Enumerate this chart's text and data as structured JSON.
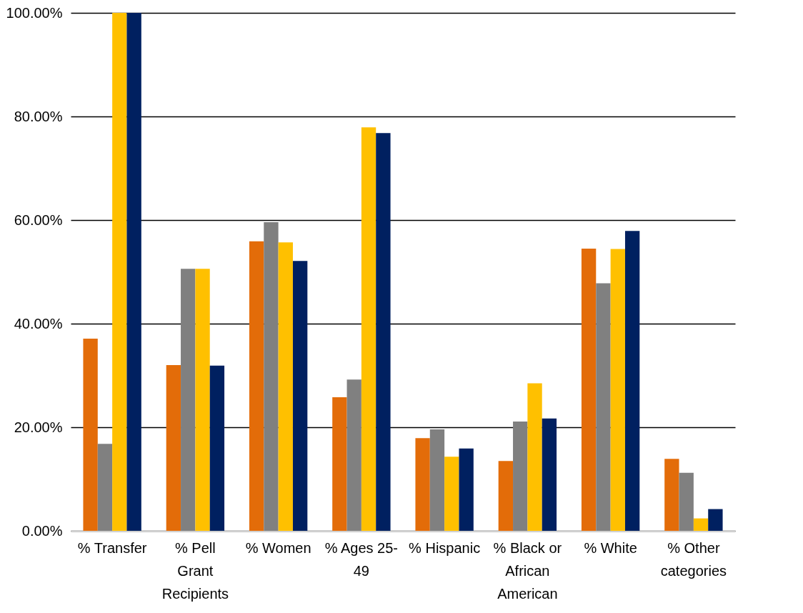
{
  "chart_data": {
    "type": "bar",
    "categories": [
      "% Transfer",
      "% Pell Grant Recipients",
      "% Women",
      "% Ages 25-49",
      "% Hispanic",
      "% Black or African American",
      "% White",
      "% Other categories"
    ],
    "series": [
      {
        "color": "#e36c09",
        "values": [
          37.1,
          32.0,
          55.9,
          25.8,
          17.9,
          13.5,
          54.5,
          13.9
        ]
      },
      {
        "color": "#808080",
        "values": [
          16.8,
          50.6,
          59.6,
          29.2,
          19.6,
          21.1,
          47.8,
          11.2
        ]
      },
      {
        "color": "#ffc000",
        "values": [
          100,
          50.6,
          55.7,
          77.9,
          14.3,
          28.5,
          54.4,
          2.4
        ]
      },
      {
        "color": "#002060",
        "values": [
          100,
          31.9,
          52.1,
          76.8,
          15.9,
          21.7,
          57.9,
          4.2
        ]
      }
    ],
    "ylim": [
      0,
      100
    ],
    "yticks": [
      {
        "value": 0,
        "label": "0.00%"
      },
      {
        "value": 20,
        "label": "20.00%"
      },
      {
        "value": 40,
        "label": "40.00%"
      },
      {
        "value": 60,
        "label": "60.00%"
      },
      {
        "value": 80,
        "label": "80.00%"
      },
      {
        "value": 100,
        "label": "100.00%"
      }
    ],
    "grid": "y"
  }
}
